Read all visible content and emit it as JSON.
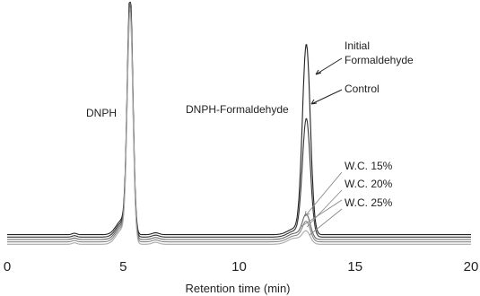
{
  "chart_data": {
    "type": "line",
    "title": "",
    "xlabel": "Retention time (min)",
    "ylabel": "",
    "xlim": [
      0,
      20
    ],
    "ylim": [
      0,
      100
    ],
    "x_ticks": [
      0,
      5,
      10,
      15,
      20
    ],
    "x_tick_labels": [
      "0",
      "5",
      "10",
      "15",
      "20"
    ],
    "grid": false,
    "peaks": [
      {
        "name": "DNPH",
        "retention_time": 5.3
      },
      {
        "name": "DNPH-Formaldehyde",
        "retention_time": 12.9
      }
    ],
    "series": [
      {
        "name": "Initial Formaldehyde",
        "color": "#222222",
        "baseline": 5.0,
        "dnph_height": 100,
        "form_height": 79
      },
      {
        "name": "Control",
        "color": "#333333",
        "baseline": 4.0,
        "dnph_height": 98,
        "form_height": 49
      },
      {
        "name": "W.C. 15%",
        "color": "#666666",
        "baseline": 3.0,
        "dnph_height": 97,
        "form_height": 10
      },
      {
        "name": "W.C. 20%",
        "color": "#888888",
        "baseline": 2.0,
        "dnph_height": 96,
        "form_height": 8
      },
      {
        "name": "W.C. 25%",
        "color": "#aaaaaa",
        "baseline": 1.0,
        "dnph_height": 95,
        "form_height": 5
      }
    ],
    "annotations": [
      {
        "text": "DNPH"
      },
      {
        "text": "DNPH-Formaldehyde"
      },
      {
        "text": "Initial"
      },
      {
        "text": "Formaldehyde"
      },
      {
        "text": "Control"
      },
      {
        "text": "W.C. 15%"
      },
      {
        "text": "W.C. 20%"
      },
      {
        "text": "W.C. 25%"
      }
    ]
  }
}
